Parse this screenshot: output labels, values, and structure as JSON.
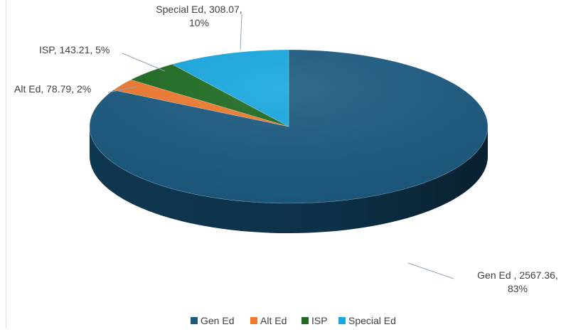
{
  "chart_data": {
    "type": "pie",
    "style": "3d",
    "categories": [
      "Gen Ed",
      "Alt Ed",
      "ISP",
      "Special Ed"
    ],
    "values": [
      2567.36,
      78.79,
      143.21,
      308.07
    ],
    "percents": [
      "83%",
      "2%",
      "5%",
      "10%"
    ],
    "data_labels": [
      {
        "line1": "Gen Ed , 2567.36,",
        "line2": "83%"
      },
      {
        "line1": "Alt Ed, 78.79, 2%",
        "line2": ""
      },
      {
        "line1": "ISP, 143.21, 5%",
        "line2": ""
      },
      {
        "line1": "Special Ed, 308.07,",
        "line2": "10%"
      }
    ],
    "legend": {
      "position": "bottom",
      "entries": [
        "Gen Ed",
        "Alt Ed",
        "ISP",
        "Special Ed"
      ]
    },
    "colors": [
      "#1b5a7f",
      "#ef7a30",
      "#1e6b21",
      "#18a8e0"
    ],
    "side_colors": [
      "#0f3a54",
      "#b3561c",
      "#124515",
      "#0f78a3"
    ]
  }
}
